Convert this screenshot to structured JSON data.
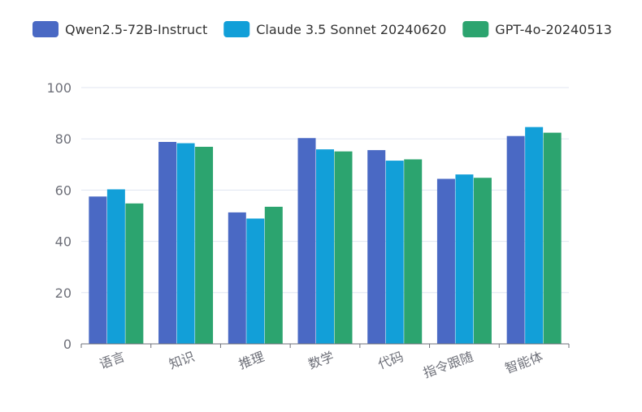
{
  "chart_data": {
    "type": "bar",
    "title": "",
    "xlabel": "",
    "ylabel": "",
    "ylim": [
      0,
      100
    ],
    "yticks": [
      0,
      20,
      40,
      60,
      80,
      100
    ],
    "grid": true,
    "legend_position": "top",
    "categories": [
      "语言",
      "知识",
      "推理",
      "数学",
      "代码",
      "指令跟随",
      "智能体"
    ],
    "series": [
      {
        "name": "Qwen2.5-72B-Instruct",
        "color": "#4a69c4",
        "values": [
          57.5,
          78.8,
          51.3,
          80.3,
          75.6,
          64.4,
          81.1
        ]
      },
      {
        "name": "Claude 3.5 Sonnet 20240620",
        "color": "#129fd8",
        "values": [
          60.3,
          78.3,
          48.9,
          75.9,
          71.5,
          66.1,
          84.6
        ]
      },
      {
        "name": "GPT-4o-20240513",
        "color": "#2ca46f",
        "values": [
          54.8,
          76.9,
          53.5,
          75.1,
          72.0,
          64.8,
          82.4
        ]
      }
    ]
  }
}
